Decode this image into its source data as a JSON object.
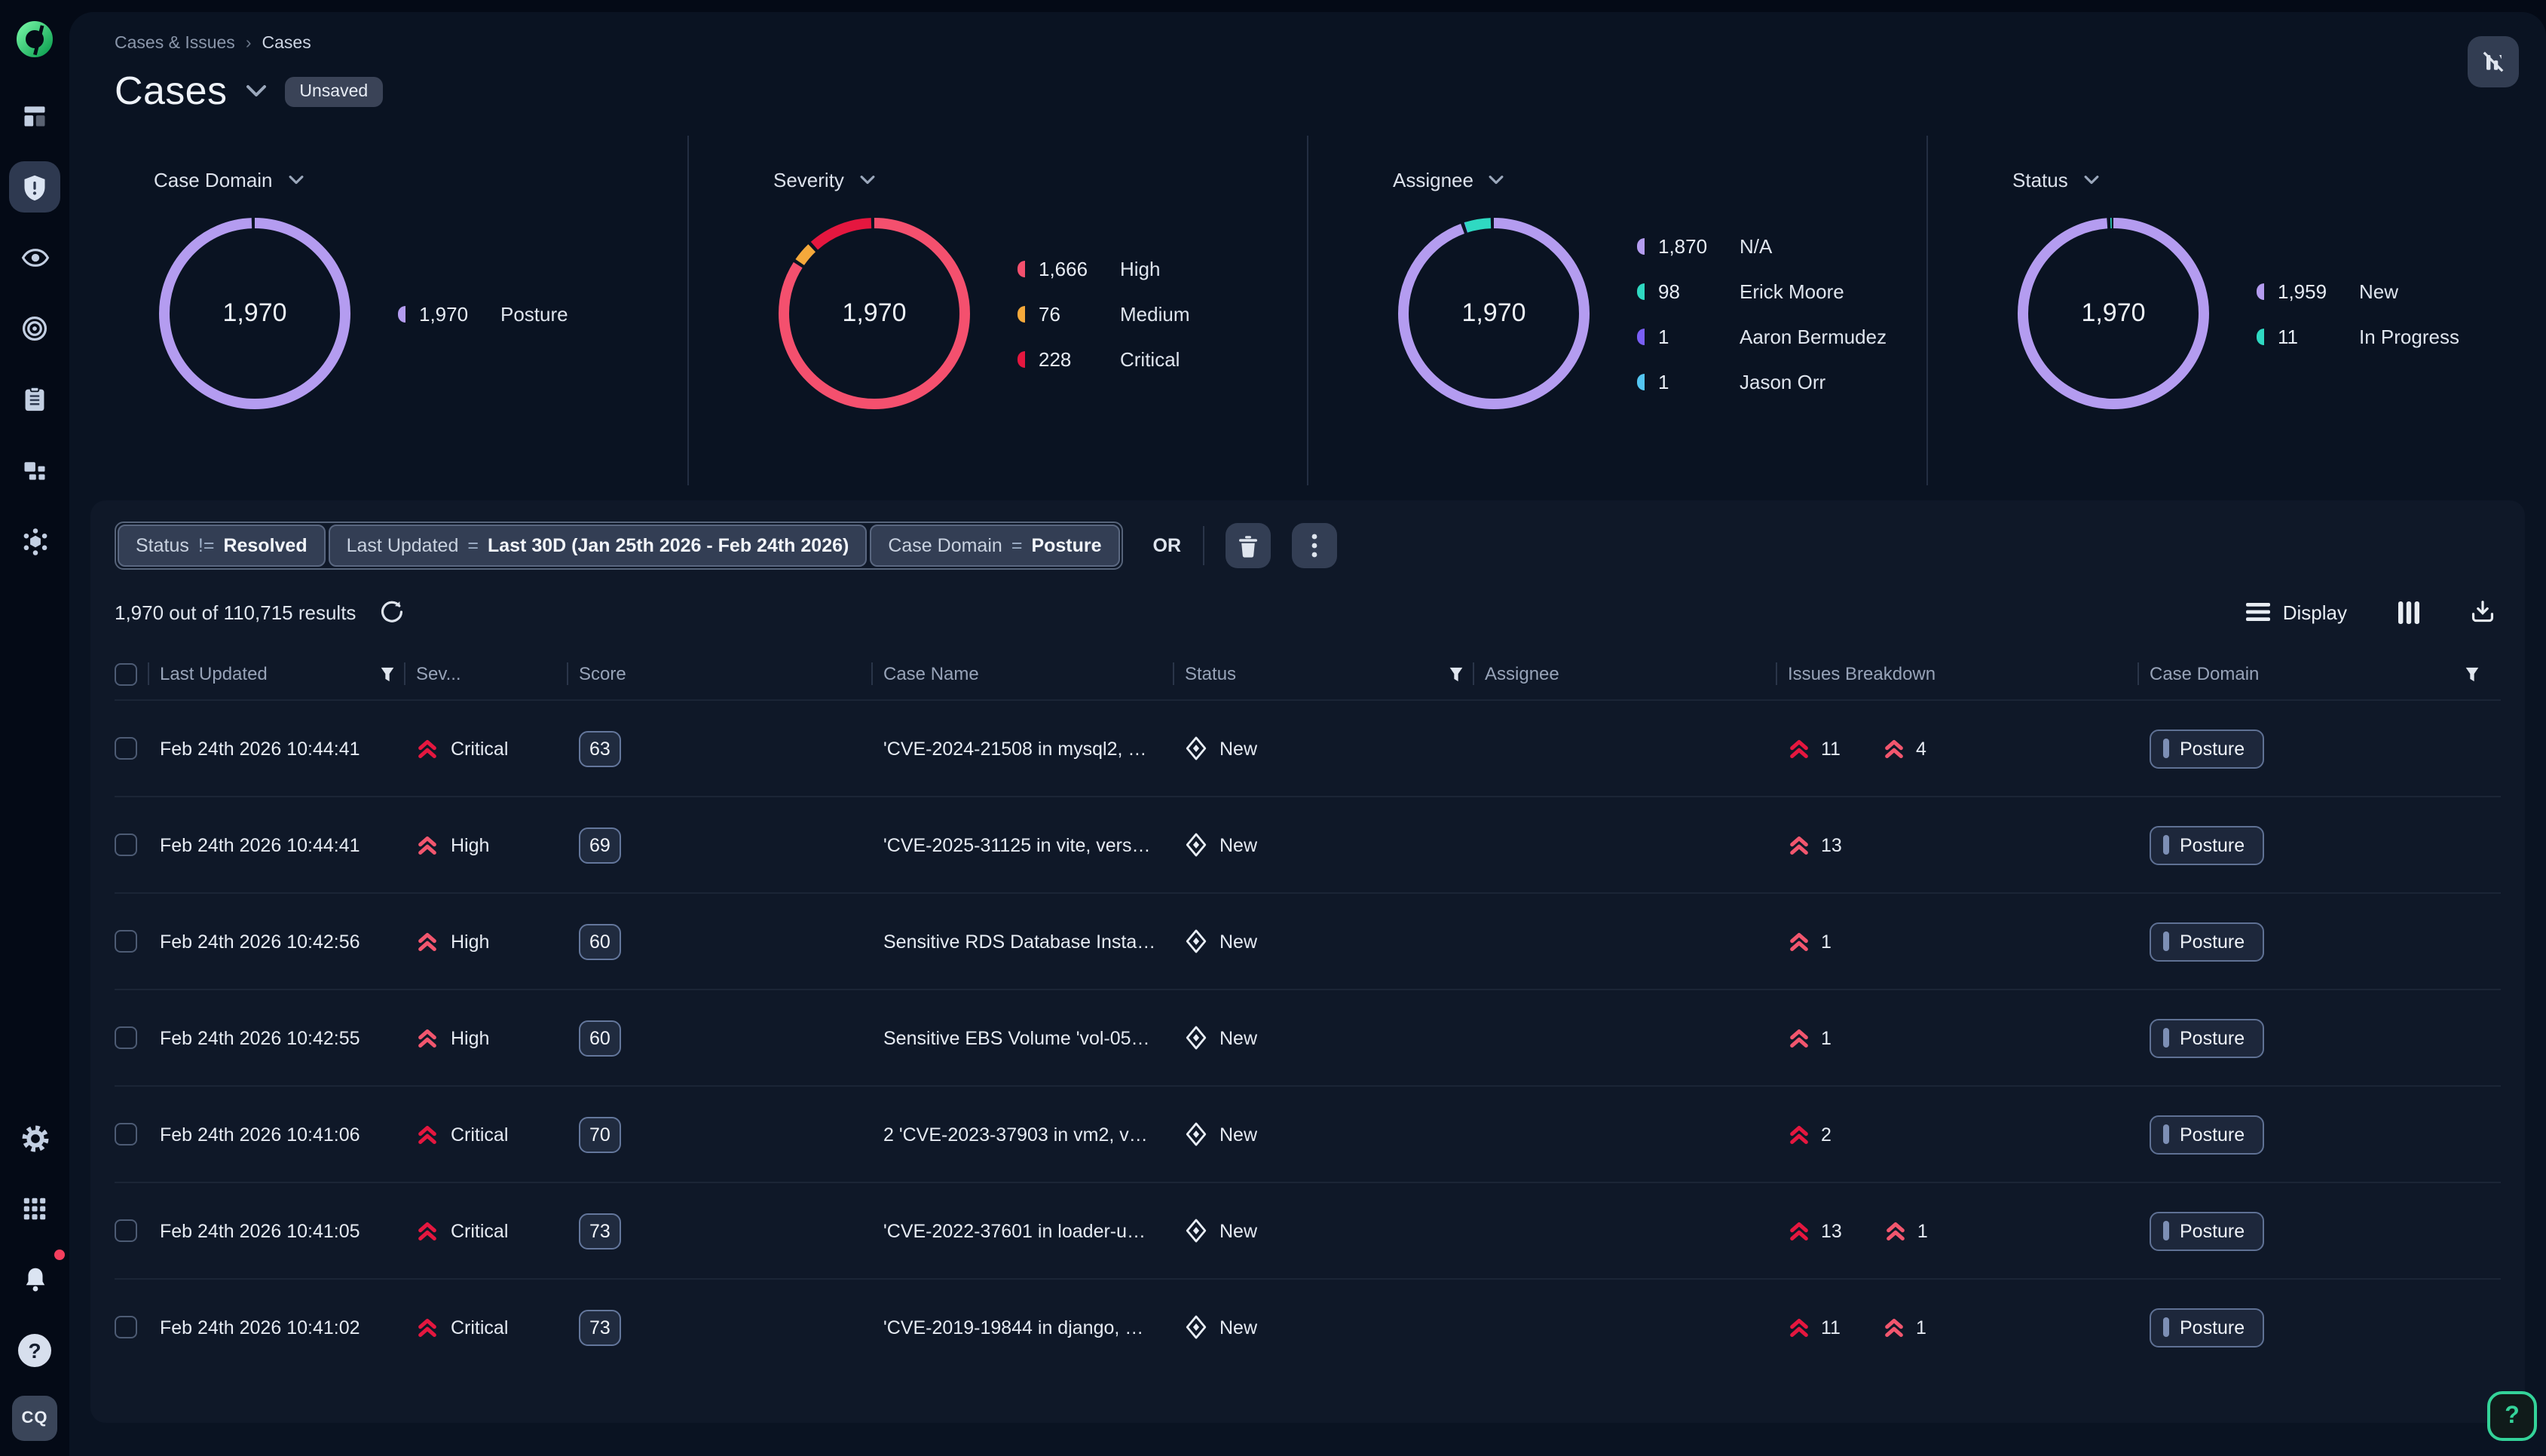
{
  "breadcrumb": {
    "parent": "Cases & Issues",
    "separator": "›",
    "current": "Cases"
  },
  "header": {
    "title": "Cases",
    "badge": "Unsaved"
  },
  "sidebar": {
    "avatar": "CQ"
  },
  "help": {
    "label": "?"
  },
  "colors": {
    "critical": "#e5173f",
    "high": "#f2566e",
    "medium": "#f5a93b",
    "purple": "#b49cf0",
    "teal": "#2fd9c2",
    "violet": "#7a5ff5",
    "blue": "#54c6f2",
    "accent_green": "#34d399"
  },
  "chart_data": [
    {
      "type": "pie",
      "title": "Case Domain",
      "center_total": "1,970",
      "segments": [
        {
          "label": "Posture",
          "value": 1970,
          "color": "#b49cf0"
        }
      ],
      "legend": [
        {
          "count": "1,970",
          "label": "Posture",
          "color": "#b49cf0"
        }
      ]
    },
    {
      "type": "pie",
      "title": "Severity",
      "center_total": "1,970",
      "segments": [
        {
          "label": "High",
          "value": 1666,
          "color": "#f4506e"
        },
        {
          "label": "Medium",
          "value": 76,
          "color": "#f5a93b"
        },
        {
          "label": "Critical",
          "value": 228,
          "color": "#e5173f"
        }
      ],
      "legend": [
        {
          "count": "1,666",
          "label": "High",
          "color": "#f4506e"
        },
        {
          "count": "76",
          "label": "Medium",
          "color": "#f5a93b"
        },
        {
          "count": "228",
          "label": "Critical",
          "color": "#e5173f"
        }
      ]
    },
    {
      "type": "pie",
      "title": "Assignee",
      "center_total": "1,970",
      "segments": [
        {
          "label": "N/A",
          "value": 1870,
          "color": "#b49cf0"
        },
        {
          "label": "Aaron Bermudez",
          "value": 1,
          "color": "#7a5ff5"
        },
        {
          "label": "Jason Orr",
          "value": 1,
          "color": "#54c6f2"
        },
        {
          "label": "Erick Moore",
          "value": 98,
          "color": "#2fd9c2"
        }
      ],
      "legend": [
        {
          "count": "1,870",
          "label": "N/A",
          "color": "#b49cf0"
        },
        {
          "count": "98",
          "label": "Erick Moore",
          "color": "#2fd9c2"
        },
        {
          "count": "1",
          "label": "Aaron Bermudez",
          "color": "#7a5ff5"
        },
        {
          "count": "1",
          "label": "Jason Orr",
          "color": "#54c6f2"
        }
      ]
    },
    {
      "type": "pie",
      "title": "Status",
      "center_total": "1,970",
      "segments": [
        {
          "label": "New",
          "value": 1959,
          "color": "#b49cf0"
        },
        {
          "label": "In Progress",
          "value": 11,
          "color": "#2fd9c2"
        }
      ],
      "legend": [
        {
          "count": "1,959",
          "label": "New",
          "color": "#b49cf0"
        },
        {
          "count": "11",
          "label": "In Progress",
          "color": "#2fd9c2"
        }
      ]
    }
  ],
  "filters": {
    "chips": [
      {
        "field": "Status",
        "op": "!=",
        "value": "Resolved"
      },
      {
        "field": "Last Updated",
        "op": "=",
        "value": "Last 30D (Jan 25th 2026 - Feb 24th 2026)"
      },
      {
        "field": "Case Domain",
        "op": "=",
        "value": "Posture"
      }
    ],
    "or_label": "OR"
  },
  "results": {
    "summary": "1,970 out of 110,715 results"
  },
  "toolbar": {
    "display_label": "Display"
  },
  "table": {
    "columns": [
      {
        "id": "select",
        "label": "",
        "filter": false
      },
      {
        "id": "last_updated",
        "label": "Last Updated",
        "filter": true
      },
      {
        "id": "severity",
        "label": "Sev...",
        "filter": false
      },
      {
        "id": "score",
        "label": "Score",
        "filter": false
      },
      {
        "id": "case_name",
        "label": "Case Name",
        "filter": false
      },
      {
        "id": "status",
        "label": "Status",
        "filter": true
      },
      {
        "id": "assignee",
        "label": "Assignee",
        "filter": false
      },
      {
        "id": "issues_breakdown",
        "label": "Issues Breakdown",
        "filter": false
      },
      {
        "id": "case_domain",
        "label": "Case Domain",
        "filter": true
      }
    ],
    "rows": [
      {
        "last_updated": "Feb 24th 2026 10:44:41",
        "severity": "Critical",
        "score": "63",
        "case_name": "'CVE-2024-21508 in mysql2, …",
        "status": "New",
        "assignee": "",
        "breakdown": [
          {
            "type": "critical",
            "count": "11"
          },
          {
            "type": "high",
            "count": "4"
          }
        ],
        "case_domain": "Posture"
      },
      {
        "last_updated": "Feb 24th 2026 10:44:41",
        "severity": "High",
        "score": "69",
        "case_name": "'CVE-2025-31125 in vite, vers…",
        "status": "New",
        "assignee": "",
        "breakdown": [
          {
            "type": "high",
            "count": "13"
          }
        ],
        "case_domain": "Posture"
      },
      {
        "last_updated": "Feb 24th 2026 10:42:56",
        "severity": "High",
        "score": "60",
        "case_name": "Sensitive RDS Database Insta…",
        "status": "New",
        "assignee": "",
        "breakdown": [
          {
            "type": "high",
            "count": "1"
          }
        ],
        "case_domain": "Posture"
      },
      {
        "last_updated": "Feb 24th 2026 10:42:55",
        "severity": "High",
        "score": "60",
        "case_name": "Sensitive EBS Volume 'vol-05…",
        "status": "New",
        "assignee": "",
        "breakdown": [
          {
            "type": "high",
            "count": "1"
          }
        ],
        "case_domain": "Posture"
      },
      {
        "last_updated": "Feb 24th 2026 10:41:06",
        "severity": "Critical",
        "score": "70",
        "case_name": "2 'CVE-2023-37903 in vm2, v…",
        "status": "New",
        "assignee": "",
        "breakdown": [
          {
            "type": "critical",
            "count": "2"
          }
        ],
        "case_domain": "Posture"
      },
      {
        "last_updated": "Feb 24th 2026 10:41:05",
        "severity": "Critical",
        "score": "73",
        "case_name": "'CVE-2022-37601 in loader-u…",
        "status": "New",
        "assignee": "",
        "breakdown": [
          {
            "type": "critical",
            "count": "13"
          },
          {
            "type": "high",
            "count": "1"
          }
        ],
        "case_domain": "Posture"
      },
      {
        "last_updated": "Feb 24th 2026 10:41:02",
        "severity": "Critical",
        "score": "73",
        "case_name": "'CVE-2019-19844 in django, …",
        "status": "New",
        "assignee": "",
        "breakdown": [
          {
            "type": "critical",
            "count": "11"
          },
          {
            "type": "high",
            "count": "1"
          }
        ],
        "case_domain": "Posture"
      }
    ]
  }
}
